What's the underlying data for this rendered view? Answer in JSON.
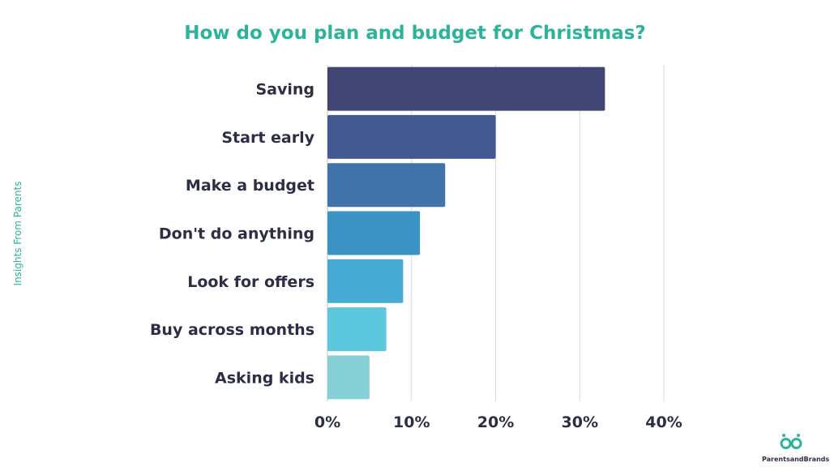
{
  "chart_data": {
    "type": "bar",
    "orientation": "horizontal",
    "title": "How do you plan and budget for Christmas?",
    "categories": [
      "Saving",
      "Start early",
      "Make a budget",
      "Don't do anything",
      "Look for offers",
      "Buy across months",
      "Asking kids"
    ],
    "values": [
      33,
      20,
      14,
      11,
      9,
      7,
      5
    ],
    "colors": [
      "#414573",
      "#435791",
      "#3f73aa",
      "#3a93c2",
      "#45abd3",
      "#5dc8dd",
      "#86d1d7"
    ],
    "xlim": [
      0,
      40
    ],
    "xticks": [
      "0%",
      "10%",
      "20%",
      "30%",
      "40%"
    ],
    "grid": true,
    "xlabel": "",
    "ylabel": ""
  },
  "side_label": "Insights From Parents",
  "brand": {
    "name": "ParentsandBrands",
    "color": "#2eb39a"
  }
}
